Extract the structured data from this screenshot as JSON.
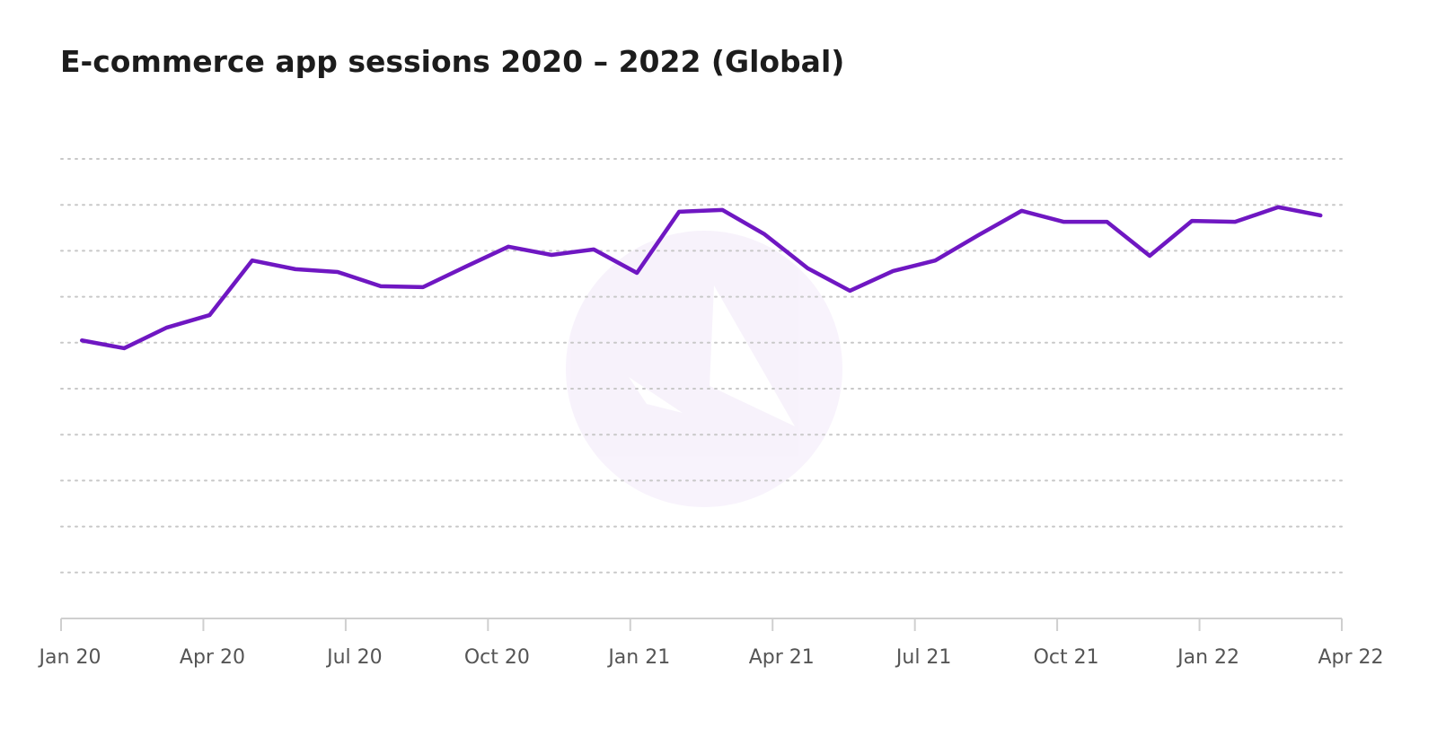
{
  "chart_data": {
    "type": "line",
    "title": "E-commerce app sessions 2020 – 2022 (Global)",
    "x": [
      0.44,
      1.33,
      2.23,
      3.13,
      4.03,
      4.94,
      5.83,
      6.74,
      7.63,
      8.54,
      9.43,
      10.34,
      11.23,
      12.14,
      13.03,
      13.94,
      14.83,
      15.74,
      16.63,
      17.54,
      18.43,
      19.34,
      20.25,
      21.14,
      22.05,
      22.95,
      23.84,
      24.75,
      25.66,
      26.55
    ],
    "values": [
      6.05,
      5.88,
      6.33,
      6.6,
      7.79,
      7.6,
      7.54,
      7.23,
      7.21,
      7.66,
      8.09,
      7.91,
      8.03,
      7.52,
      8.85,
      8.89,
      8.36,
      7.62,
      7.13,
      7.56,
      7.79,
      8.34,
      8.87,
      8.63,
      8.63,
      7.89,
      8.65,
      8.63,
      8.95,
      8.77
    ],
    "color": "#6f17c2",
    "xlim": [
      0,
      27
    ],
    "xticks": [
      {
        "value": 0,
        "label": "Jan 20"
      },
      {
        "value": 3,
        "label": "Apr 20"
      },
      {
        "value": 6,
        "label": "Jul 20"
      },
      {
        "value": 9,
        "label": "Oct 20"
      },
      {
        "value": 12,
        "label": "Jan 21"
      },
      {
        "value": 15,
        "label": "Apr 21"
      },
      {
        "value": 18,
        "label": "Jul 21"
      },
      {
        "value": 21,
        "label": "Oct 21"
      },
      {
        "value": 24,
        "label": "Jan 22"
      },
      {
        "value": 27,
        "label": "Apr 22"
      }
    ],
    "ylim": [
      0,
      10
    ],
    "yticks": [
      1,
      2,
      3,
      4,
      5,
      6,
      7,
      8,
      9,
      10
    ],
    "grid": true
  }
}
